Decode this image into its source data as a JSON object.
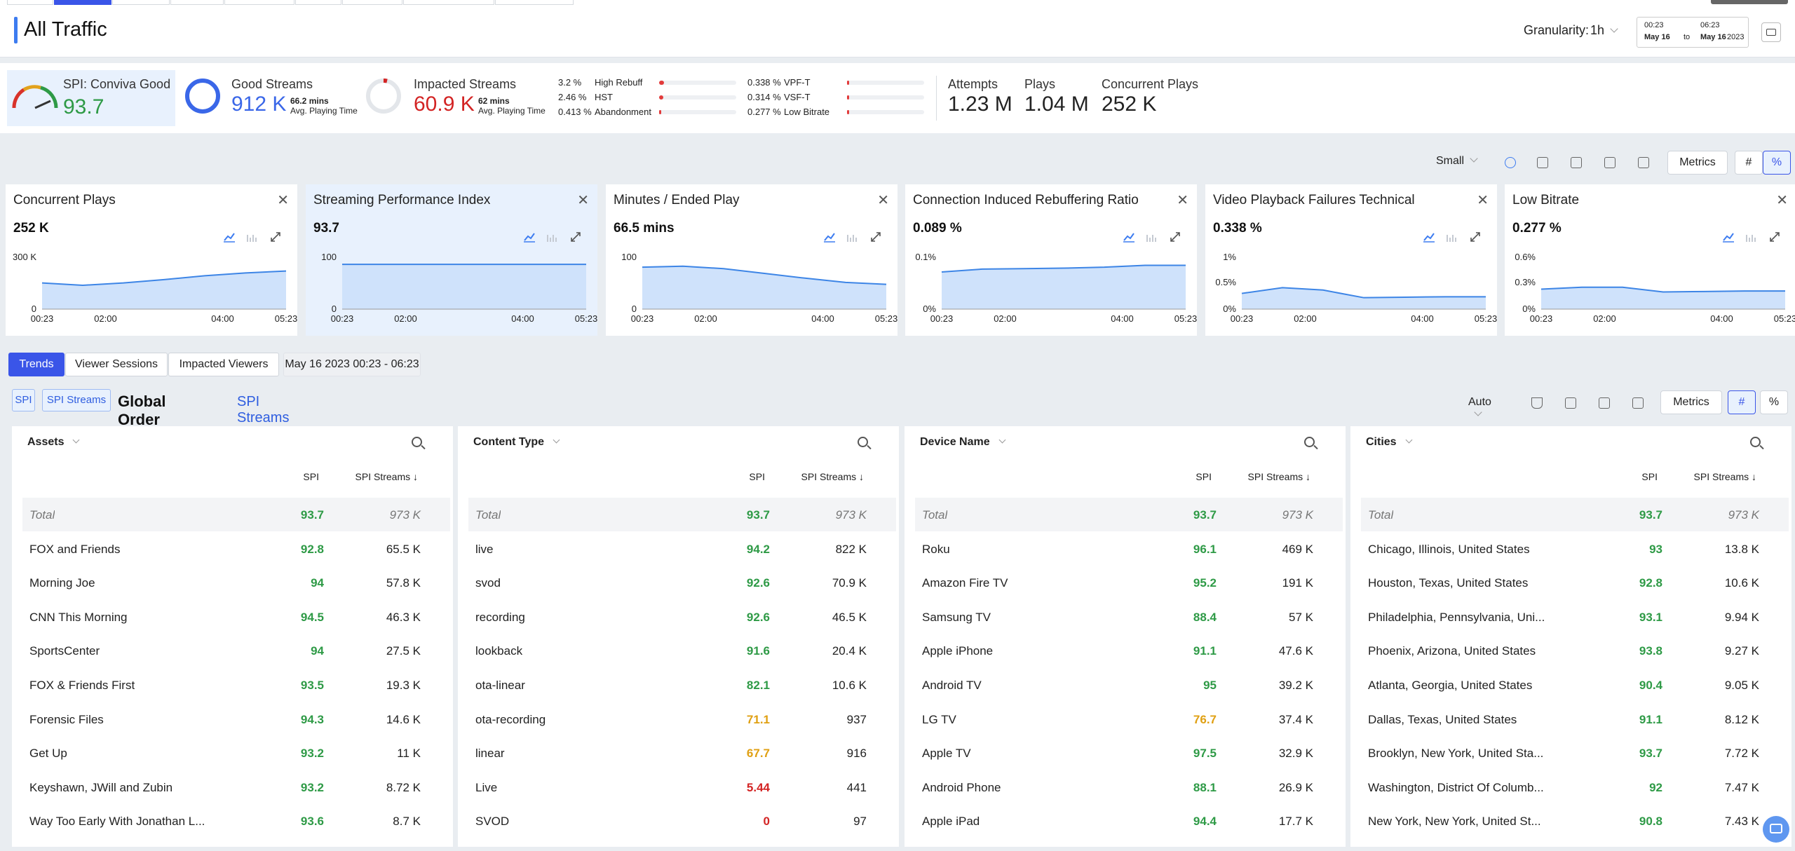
{
  "header": {
    "title": "All Traffic",
    "granularity_label": "Granularity:",
    "granularity_value": "1h",
    "date_from_time": "00:23",
    "date_from_day": "May 16",
    "date_to_label": "to",
    "date_to_time": "06:23",
    "date_to_day": "May 16",
    "date_year": "2023"
  },
  "kpis": {
    "spi_label": "SPI: Conviva Good",
    "spi_value": "93.7",
    "good_label": "Good Streams",
    "good_value": "912 K",
    "good_mins": "66.2 mins",
    "good_mins_label": "Avg. Playing Time",
    "impacted_label": "Impacted Streams",
    "impacted_value": "60.9 K",
    "impacted_mins": "62 mins",
    "impacted_mins_label": "Avg. Playing Time",
    "rebuff": [
      {
        "pct": "3.2 %",
        "label": "High Rebuff",
        "fill": 0.06
      },
      {
        "pct": "2.46 %",
        "label": "HST",
        "fill": 0.05
      },
      {
        "pct": "0.413 %",
        "label": "Abandonment",
        "fill": 0.01
      },
      {
        "pct": "0.338 %",
        "label": "VPF-T",
        "fill": 0.01
      },
      {
        "pct": "0.314 %",
        "label": "VSF-T",
        "fill": 0.01
      },
      {
        "pct": "0.277 %",
        "label": "Low Bitrate",
        "fill": 0.01
      }
    ],
    "attempts_label": "Attempts",
    "attempts_value": "1.23 M",
    "plays_label": "Plays",
    "plays_value": "1.04 M",
    "concurrent_label": "Concurrent Plays",
    "concurrent_value": "252 K"
  },
  "toolbar": {
    "size": "Small",
    "metrics": "Metrics",
    "hash": "#",
    "pct": "%"
  },
  "cards": [
    {
      "title": "Concurrent Plays",
      "value": "252 K",
      "ymax": "300 K",
      "ymin": "0",
      "ymid": "",
      "x": [
        "00:23",
        "02:00",
        "04:00",
        "05:23"
      ],
      "points": [
        0.55,
        0.5,
        0.55,
        0.62,
        0.7,
        0.76,
        0.8
      ],
      "selected": false
    },
    {
      "title": "Streaming Performance Index",
      "value": "93.7",
      "ymax": "100",
      "ymin": "0",
      "ymid": "",
      "x": [
        "00:23",
        "02:00",
        "04:00",
        "05:23"
      ],
      "points": [
        0.94,
        0.94,
        0.94,
        0.94,
        0.94,
        0.94,
        0.94
      ],
      "selected": true
    },
    {
      "title": "Minutes / Ended Play",
      "value": "66.5 mins",
      "ymax": "100",
      "ymin": "0",
      "ymid": "",
      "x": [
        "00:23",
        "02:00",
        "04:00",
        "05:23"
      ],
      "points": [
        0.88,
        0.9,
        0.85,
        0.75,
        0.65,
        0.56,
        0.52
      ],
      "selected": false
    },
    {
      "title": "Connection Induced Rebuffering Ratio",
      "value": "0.089 %",
      "ymax": "0.1%",
      "ymin": "0%",
      "ymid": "",
      "x": [
        "00:23",
        "02:00",
        "04:00",
        "05:23"
      ],
      "points": [
        0.78,
        0.84,
        0.85,
        0.86,
        0.88,
        0.92,
        0.92
      ],
      "selected": false
    },
    {
      "title": "Video Playback Failures Technical",
      "value": "0.338 %",
      "ymax": "1%",
      "ymin": "0%",
      "ymid": "0.5%",
      "x": [
        "00:23",
        "02:00",
        "04:00",
        "05:23"
      ],
      "points": [
        0.33,
        0.45,
        0.4,
        0.24,
        0.25,
        0.26,
        0.26
      ],
      "selected": false
    },
    {
      "title": "Low Bitrate",
      "value": "0.277 %",
      "ymax": "0.6%",
      "ymin": "0%",
      "ymid": "0.3%",
      "x": [
        "00:23",
        "02:00",
        "04:00",
        "05:23"
      ],
      "points": [
        0.42,
        0.46,
        0.46,
        0.36,
        0.37,
        0.38,
        0.38
      ],
      "selected": false
    }
  ],
  "tabs": {
    "trends": "Trends",
    "viewer_sessions": "Viewer Sessions",
    "impacted_viewers": "Impacted Viewers",
    "range": "May 16 2023 00:23 - 06:23"
  },
  "order": {
    "chip_spi": "SPI",
    "chip_streams": "SPI Streams",
    "label": "Global Order By",
    "value": "SPI Streams",
    "auto": "Auto",
    "metrics": "Metrics",
    "hash": "#",
    "pct": "%"
  },
  "panels": [
    {
      "title": "Assets",
      "col1": "SPI",
      "col2": "SPI Streams ↓",
      "rows": [
        {
          "n": "Total",
          "s": "93.7",
          "c": "973 K",
          "k": "g"
        },
        {
          "n": "FOX and Friends",
          "s": "92.8",
          "c": "65.5 K",
          "k": "g"
        },
        {
          "n": "Morning Joe",
          "s": "94",
          "c": "57.8 K",
          "k": "g"
        },
        {
          "n": "CNN This Morning",
          "s": "94.5",
          "c": "46.3 K",
          "k": "g"
        },
        {
          "n": "SportsCenter",
          "s": "94",
          "c": "27.5 K",
          "k": "g"
        },
        {
          "n": "FOX & Friends First",
          "s": "93.5",
          "c": "19.3 K",
          "k": "g"
        },
        {
          "n": "Forensic Files",
          "s": "94.3",
          "c": "14.6 K",
          "k": "g"
        },
        {
          "n": "Get Up",
          "s": "93.2",
          "c": "11 K",
          "k": "g"
        },
        {
          "n": "Keyshawn, JWill and Zubin",
          "s": "93.2",
          "c": "8.72 K",
          "k": "g"
        },
        {
          "n": "Way Too Early With Jonathan L...",
          "s": "93.6",
          "c": "8.7 K",
          "k": "g"
        }
      ]
    },
    {
      "title": "Content Type",
      "col1": "SPI",
      "col2": "SPI Streams ↓",
      "rows": [
        {
          "n": "Total",
          "s": "93.7",
          "c": "973 K",
          "k": "g"
        },
        {
          "n": "live",
          "s": "94.2",
          "c": "822 K",
          "k": "g"
        },
        {
          "n": "svod",
          "s": "92.6",
          "c": "70.9 K",
          "k": "g"
        },
        {
          "n": "recording",
          "s": "92.6",
          "c": "46.5 K",
          "k": "g"
        },
        {
          "n": "lookback",
          "s": "91.6",
          "c": "20.4 K",
          "k": "g"
        },
        {
          "n": "ota-linear",
          "s": "82.1",
          "c": "10.6 K",
          "k": "g"
        },
        {
          "n": "ota-recording",
          "s": "71.1",
          "c": "937",
          "k": "o"
        },
        {
          "n": "linear",
          "s": "67.7",
          "c": "916",
          "k": "o"
        },
        {
          "n": "Live",
          "s": "5.44",
          "c": "441",
          "k": "r"
        },
        {
          "n": "SVOD",
          "s": "0",
          "c": "97",
          "k": "r"
        }
      ]
    },
    {
      "title": "Device Name",
      "col1": "SPI",
      "col2": "SPI Streams ↓",
      "rows": [
        {
          "n": "Total",
          "s": "93.7",
          "c": "973 K",
          "k": "g"
        },
        {
          "n": "Roku",
          "s": "96.1",
          "c": "469 K",
          "k": "g"
        },
        {
          "n": "Amazon Fire TV",
          "s": "95.2",
          "c": "191 K",
          "k": "g"
        },
        {
          "n": "Samsung TV",
          "s": "88.4",
          "c": "57 K",
          "k": "g"
        },
        {
          "n": "Apple iPhone",
          "s": "91.1",
          "c": "47.6 K",
          "k": "g"
        },
        {
          "n": "Android TV",
          "s": "95",
          "c": "39.2 K",
          "k": "g"
        },
        {
          "n": "LG TV",
          "s": "76.7",
          "c": "37.4 K",
          "k": "o"
        },
        {
          "n": "Apple TV",
          "s": "97.5",
          "c": "32.9 K",
          "k": "g"
        },
        {
          "n": "Android Phone",
          "s": "88.1",
          "c": "26.9 K",
          "k": "g"
        },
        {
          "n": "Apple iPad",
          "s": "94.4",
          "c": "17.7 K",
          "k": "g"
        }
      ]
    },
    {
      "title": "Cities",
      "col1": "SPI",
      "col2": "SPI Streams ↓",
      "rows": [
        {
          "n": "Total",
          "s": "93.7",
          "c": "973 K",
          "k": "g"
        },
        {
          "n": "Chicago, Illinois, United States",
          "s": "93",
          "c": "13.8 K",
          "k": "g"
        },
        {
          "n": "Houston, Texas, United States",
          "s": "92.8",
          "c": "10.6 K",
          "k": "g"
        },
        {
          "n": "Philadelphia, Pennsylvania, Uni...",
          "s": "93.1",
          "c": "9.94 K",
          "k": "g"
        },
        {
          "n": "Phoenix, Arizona, United States",
          "s": "93.8",
          "c": "9.27 K",
          "k": "g"
        },
        {
          "n": "Atlanta, Georgia, United States",
          "s": "90.4",
          "c": "9.05 K",
          "k": "g"
        },
        {
          "n": "Dallas, Texas, United States",
          "s": "91.1",
          "c": "8.12 K",
          "k": "g"
        },
        {
          "n": "Brooklyn, New York, United Sta...",
          "s": "93.7",
          "c": "7.72 K",
          "k": "g"
        },
        {
          "n": "Washington, District Of Columb...",
          "s": "92",
          "c": "7.47 K",
          "k": "g"
        },
        {
          "n": "New York, New York, United St...",
          "s": "90.8",
          "c": "7.43 K",
          "k": "g"
        }
      ]
    }
  ]
}
